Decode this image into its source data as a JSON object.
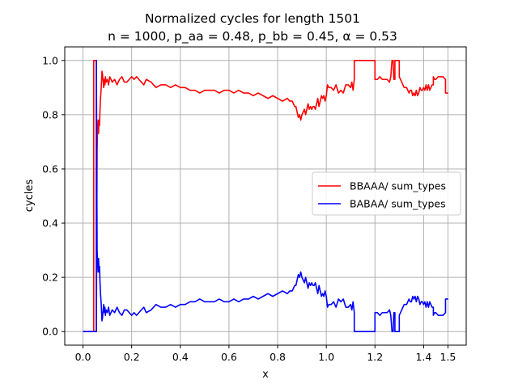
{
  "chart_data": {
    "type": "line",
    "title_lines": [
      "Normalized cycles for length 1501",
      "n = 1000, p_aa = 0.48, p_bb = 0.45, α = 0.53"
    ],
    "xlabel": "x",
    "ylabel": "cycles",
    "xlim": [
      -0.075,
      1.575
    ],
    "ylim": [
      -0.05,
      1.05
    ],
    "xticks": [
      0.0,
      0.2,
      0.4,
      0.6,
      0.8,
      1.0,
      1.2,
      1.4,
      1.5
    ],
    "xtick_labels": [
      "0.0",
      "0.2",
      "0.4",
      "0.6",
      "0.8",
      "1.0",
      "1.2",
      "1.4",
      "1.5"
    ],
    "yticks": [
      0.0,
      0.2,
      0.4,
      0.6,
      0.8,
      1.0
    ],
    "ytick_labels": [
      "0.0",
      "0.2",
      "0.4",
      "0.6",
      "0.8",
      "1.0"
    ],
    "grid": true,
    "legend_position": "center-right",
    "series": [
      {
        "name": "BBAAA/ sum_types",
        "color": "#ff0000",
        "x": [
          0.0,
          0.044,
          0.044,
          0.045,
          0.045,
          0.055,
          0.055,
          0.058,
          0.06,
          0.062,
          0.064,
          0.066,
          0.068,
          0.07,
          0.072,
          0.075,
          0.078,
          0.08,
          0.083,
          0.085,
          0.088,
          0.09,
          0.092,
          0.095,
          0.1,
          0.105,
          0.11,
          0.12,
          0.13,
          0.14,
          0.15,
          0.16,
          0.17,
          0.18,
          0.19,
          0.2,
          0.21,
          0.22,
          0.23,
          0.24,
          0.25,
          0.26,
          0.28,
          0.3,
          0.32,
          0.34,
          0.36,
          0.38,
          0.4,
          0.42,
          0.44,
          0.46,
          0.48,
          0.5,
          0.52,
          0.54,
          0.56,
          0.58,
          0.6,
          0.62,
          0.64,
          0.66,
          0.68,
          0.7,
          0.72,
          0.74,
          0.76,
          0.78,
          0.8,
          0.82,
          0.84,
          0.85,
          0.86,
          0.87,
          0.875,
          0.88,
          0.885,
          0.89,
          0.895,
          0.9,
          0.905,
          0.91,
          0.915,
          0.92,
          0.925,
          0.93,
          0.935,
          0.94,
          0.945,
          0.95,
          0.955,
          0.96,
          0.965,
          0.97,
          0.975,
          0.98,
          0.985,
          0.99,
          0.995,
          1.0,
          1.005,
          1.01,
          1.02,
          1.03,
          1.04,
          1.05,
          1.06,
          1.07,
          1.08,
          1.09,
          1.1,
          1.105,
          1.11,
          1.115,
          1.115,
          1.13,
          1.15,
          1.17,
          1.19,
          1.2,
          1.2,
          1.21,
          1.22,
          1.23,
          1.24,
          1.25,
          1.26,
          1.265,
          1.27,
          1.275,
          1.277,
          1.278,
          1.28,
          1.282,
          1.282,
          1.29,
          1.3,
          1.3,
          1.31,
          1.32,
          1.33,
          1.34,
          1.345,
          1.35,
          1.355,
          1.36,
          1.365,
          1.37,
          1.375,
          1.38,
          1.385,
          1.39,
          1.395,
          1.4,
          1.405,
          1.41,
          1.415,
          1.42,
          1.425,
          1.43,
          1.435,
          1.44,
          1.44,
          1.445,
          1.45,
          1.46,
          1.47,
          1.48,
          1.49,
          1.49,
          1.5,
          1.501
        ],
        "y": [
          0.0,
          0.0,
          1.0,
          1.0,
          1.0,
          1.0,
          0.0,
          0.67,
          0.75,
          0.78,
          0.73,
          0.78,
          0.76,
          0.82,
          0.86,
          0.9,
          0.96,
          0.95,
          0.92,
          0.9,
          0.93,
          0.91,
          0.94,
          0.92,
          0.93,
          0.91,
          0.94,
          0.92,
          0.93,
          0.91,
          0.93,
          0.94,
          0.92,
          0.92,
          0.93,
          0.94,
          0.93,
          0.94,
          0.93,
          0.92,
          0.91,
          0.93,
          0.92,
          0.9,
          0.91,
          0.91,
          0.9,
          0.91,
          0.9,
          0.9,
          0.89,
          0.89,
          0.88,
          0.89,
          0.89,
          0.89,
          0.88,
          0.89,
          0.89,
          0.88,
          0.89,
          0.88,
          0.88,
          0.87,
          0.88,
          0.87,
          0.86,
          0.87,
          0.86,
          0.85,
          0.86,
          0.85,
          0.85,
          0.83,
          0.83,
          0.81,
          0.79,
          0.8,
          0.78,
          0.8,
          0.81,
          0.82,
          0.8,
          0.82,
          0.84,
          0.82,
          0.83,
          0.82,
          0.83,
          0.83,
          0.82,
          0.84,
          0.86,
          0.83,
          0.85,
          0.87,
          0.86,
          0.87,
          0.85,
          0.87,
          0.91,
          0.9,
          0.9,
          0.89,
          0.91,
          0.88,
          0.89,
          0.88,
          0.91,
          0.91,
          0.9,
          0.92,
          0.89,
          0.93,
          1.0,
          1.0,
          1.0,
          1.0,
          1.0,
          1.0,
          0.93,
          0.93,
          0.94,
          0.93,
          0.93,
          0.93,
          0.92,
          0.94,
          1.0,
          1.0,
          0.94,
          0.93,
          0.93,
          0.93,
          1.0,
          1.0,
          1.0,
          0.94,
          0.92,
          0.9,
          0.9,
          0.88,
          0.89,
          0.89,
          0.87,
          0.88,
          0.87,
          0.89,
          0.87,
          0.88,
          0.9,
          0.89,
          0.89,
          0.9,
          0.89,
          0.91,
          0.89,
          0.91,
          0.89,
          0.9,
          0.91,
          0.91,
          0.94,
          0.93,
          0.93,
          0.94,
          0.94,
          0.94,
          0.93,
          0.88,
          0.88,
          0.88
        ]
      },
      {
        "name": "BABAA/ sum_types",
        "color": "#0000ff",
        "x": [
          0.0,
          0.055,
          0.055,
          0.058,
          0.06,
          0.062,
          0.064,
          0.066,
          0.068,
          0.07,
          0.072,
          0.075,
          0.078,
          0.08,
          0.083,
          0.085,
          0.088,
          0.09,
          0.092,
          0.095,
          0.1,
          0.105,
          0.11,
          0.12,
          0.13,
          0.14,
          0.15,
          0.16,
          0.17,
          0.18,
          0.19,
          0.2,
          0.21,
          0.22,
          0.23,
          0.24,
          0.25,
          0.26,
          0.28,
          0.3,
          0.32,
          0.34,
          0.36,
          0.38,
          0.4,
          0.42,
          0.44,
          0.46,
          0.48,
          0.5,
          0.52,
          0.54,
          0.56,
          0.58,
          0.6,
          0.62,
          0.64,
          0.66,
          0.68,
          0.7,
          0.72,
          0.74,
          0.76,
          0.78,
          0.8,
          0.82,
          0.84,
          0.85,
          0.86,
          0.87,
          0.875,
          0.88,
          0.885,
          0.89,
          0.895,
          0.9,
          0.905,
          0.91,
          0.915,
          0.92,
          0.925,
          0.93,
          0.935,
          0.94,
          0.945,
          0.95,
          0.955,
          0.96,
          0.965,
          0.97,
          0.975,
          0.98,
          0.985,
          0.99,
          0.995,
          1.0,
          1.005,
          1.01,
          1.02,
          1.03,
          1.04,
          1.05,
          1.06,
          1.07,
          1.08,
          1.09,
          1.1,
          1.105,
          1.11,
          1.115,
          1.115,
          1.13,
          1.15,
          1.17,
          1.19,
          1.2,
          1.2,
          1.21,
          1.22,
          1.23,
          1.24,
          1.25,
          1.26,
          1.265,
          1.27,
          1.275,
          1.277,
          1.278,
          1.28,
          1.282,
          1.282,
          1.29,
          1.3,
          1.3,
          1.31,
          1.32,
          1.33,
          1.34,
          1.345,
          1.35,
          1.355,
          1.36,
          1.365,
          1.37,
          1.375,
          1.38,
          1.385,
          1.39,
          1.395,
          1.4,
          1.405,
          1.41,
          1.415,
          1.42,
          1.425,
          1.43,
          1.435,
          1.44,
          1.44,
          1.445,
          1.45,
          1.46,
          1.47,
          1.48,
          1.49,
          1.49,
          1.5,
          1.501
        ],
        "y": [
          0.0,
          0.0,
          1.0,
          0.3,
          0.25,
          0.22,
          0.27,
          0.22,
          0.24,
          0.18,
          0.14,
          0.1,
          0.04,
          0.05,
          0.08,
          0.1,
          0.07,
          0.09,
          0.06,
          0.08,
          0.07,
          0.09,
          0.06,
          0.08,
          0.07,
          0.09,
          0.07,
          0.06,
          0.08,
          0.08,
          0.07,
          0.06,
          0.07,
          0.06,
          0.07,
          0.08,
          0.09,
          0.07,
          0.08,
          0.1,
          0.09,
          0.09,
          0.1,
          0.09,
          0.1,
          0.1,
          0.11,
          0.11,
          0.12,
          0.11,
          0.11,
          0.11,
          0.12,
          0.11,
          0.11,
          0.12,
          0.11,
          0.12,
          0.12,
          0.13,
          0.12,
          0.13,
          0.14,
          0.13,
          0.14,
          0.15,
          0.14,
          0.15,
          0.15,
          0.17,
          0.17,
          0.19,
          0.21,
          0.2,
          0.22,
          0.2,
          0.19,
          0.18,
          0.2,
          0.18,
          0.16,
          0.18,
          0.17,
          0.18,
          0.17,
          0.17,
          0.18,
          0.16,
          0.14,
          0.17,
          0.15,
          0.13,
          0.14,
          0.13,
          0.15,
          0.13,
          0.09,
          0.1,
          0.1,
          0.11,
          0.09,
          0.12,
          0.11,
          0.12,
          0.09,
          0.09,
          0.1,
          0.08,
          0.11,
          0.07,
          0.0,
          0.0,
          0.0,
          0.0,
          0.0,
          0.0,
          0.07,
          0.07,
          0.06,
          0.07,
          0.07,
          0.07,
          0.08,
          0.06,
          0.0,
          0.0,
          0.06,
          0.07,
          0.07,
          0.07,
          0.0,
          0.0,
          0.0,
          0.06,
          0.08,
          0.1,
          0.1,
          0.12,
          0.11,
          0.11,
          0.13,
          0.12,
          0.13,
          0.11,
          0.13,
          0.12,
          0.1,
          0.11,
          0.11,
          0.1,
          0.11,
          0.09,
          0.11,
          0.09,
          0.11,
          0.1,
          0.09,
          0.09,
          0.06,
          0.07,
          0.07,
          0.06,
          0.06,
          0.06,
          0.07,
          0.12,
          0.12,
          0.12
        ]
      }
    ]
  }
}
